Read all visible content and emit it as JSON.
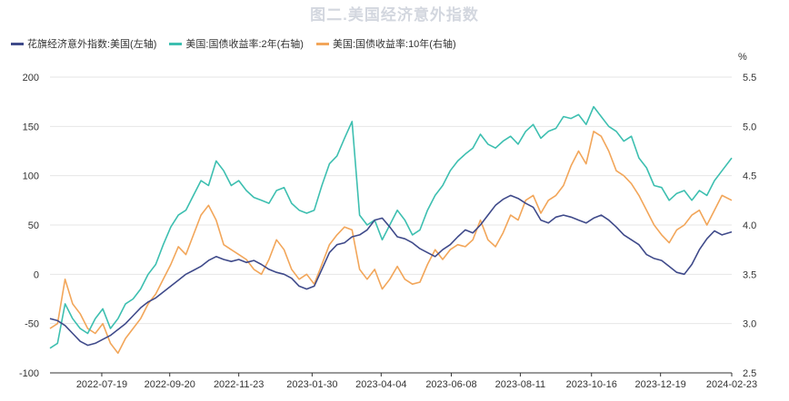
{
  "header": {
    "title": "图二.美国经济意外指数"
  },
  "chart_data": {
    "type": "line",
    "title": "图二.美国经济意外指数",
    "x_start": "2022-06-01",
    "x_end": "2024-02-23",
    "x_tick_labels": [
      "2022-07-19",
      "2022-09-20",
      "2022-11-23",
      "2023-01-30",
      "2023-04-04",
      "2023-06-08",
      "2023-08-11",
      "2023-10-16",
      "2023-12-19",
      "2024-02-23"
    ],
    "left_axis": {
      "ticks": [
        "200",
        "150",
        "100",
        "50",
        "0",
        "-50",
        "-100"
      ],
      "ylim": [
        -100,
        200
      ]
    },
    "right_axis": {
      "unit": "%",
      "ticks": [
        "5.5",
        "5.0",
        "4.5",
        "4.0",
        "3.5",
        "3.0",
        "2.5"
      ],
      "ylim": [
        2.5,
        5.5
      ]
    },
    "grid": "horizontal",
    "legend_position": "top-left",
    "series": [
      {
        "name": "花旗经济意外指数:美国(左轴)",
        "axis": "left",
        "color": "#3f4a8a",
        "points": [
          [
            "2022-06-01",
            -45
          ],
          [
            "2022-06-08",
            -47
          ],
          [
            "2022-06-15",
            -52
          ],
          [
            "2022-06-22",
            -60
          ],
          [
            "2022-06-29",
            -68
          ],
          [
            "2022-07-06",
            -72
          ],
          [
            "2022-07-13",
            -70
          ],
          [
            "2022-07-20",
            -66
          ],
          [
            "2022-07-27",
            -62
          ],
          [
            "2022-08-03",
            -56
          ],
          [
            "2022-08-10",
            -50
          ],
          [
            "2022-08-17",
            -42
          ],
          [
            "2022-08-24",
            -34
          ],
          [
            "2022-08-31",
            -28
          ],
          [
            "2022-09-07",
            -24
          ],
          [
            "2022-09-14",
            -18
          ],
          [
            "2022-09-21",
            -12
          ],
          [
            "2022-09-28",
            -6
          ],
          [
            "2022-10-05",
            0
          ],
          [
            "2022-10-12",
            4
          ],
          [
            "2022-10-19",
            8
          ],
          [
            "2022-10-26",
            14
          ],
          [
            "2022-11-02",
            18
          ],
          [
            "2022-11-09",
            15
          ],
          [
            "2022-11-16",
            13
          ],
          [
            "2022-11-23",
            15
          ],
          [
            "2022-11-30",
            12
          ],
          [
            "2022-12-07",
            14
          ],
          [
            "2022-12-14",
            10
          ],
          [
            "2022-12-21",
            5
          ],
          [
            "2022-12-28",
            2
          ],
          [
            "2023-01-04",
            0
          ],
          [
            "2023-01-11",
            -4
          ],
          [
            "2023-01-18",
            -12
          ],
          [
            "2023-01-25",
            -15
          ],
          [
            "2023-02-01",
            -12
          ],
          [
            "2023-02-08",
            5
          ],
          [
            "2023-02-15",
            22
          ],
          [
            "2023-02-22",
            30
          ],
          [
            "2023-03-01",
            32
          ],
          [
            "2023-03-08",
            38
          ],
          [
            "2023-03-15",
            40
          ],
          [
            "2023-03-22",
            45
          ],
          [
            "2023-03-29",
            55
          ],
          [
            "2023-04-05",
            57
          ],
          [
            "2023-04-12",
            48
          ],
          [
            "2023-04-19",
            38
          ],
          [
            "2023-04-26",
            36
          ],
          [
            "2023-05-03",
            32
          ],
          [
            "2023-05-10",
            26
          ],
          [
            "2023-05-17",
            22
          ],
          [
            "2023-05-24",
            18
          ],
          [
            "2023-05-31",
            25
          ],
          [
            "2023-06-07",
            30
          ],
          [
            "2023-06-14",
            38
          ],
          [
            "2023-06-21",
            45
          ],
          [
            "2023-06-28",
            42
          ],
          [
            "2023-07-05",
            50
          ],
          [
            "2023-07-12",
            60
          ],
          [
            "2023-07-19",
            70
          ],
          [
            "2023-07-26",
            76
          ],
          [
            "2023-08-02",
            80
          ],
          [
            "2023-08-09",
            77
          ],
          [
            "2023-08-16",
            72
          ],
          [
            "2023-08-23",
            68
          ],
          [
            "2023-08-30",
            55
          ],
          [
            "2023-09-06",
            52
          ],
          [
            "2023-09-13",
            58
          ],
          [
            "2023-09-20",
            60
          ],
          [
            "2023-09-27",
            58
          ],
          [
            "2023-10-04",
            55
          ],
          [
            "2023-10-11",
            52
          ],
          [
            "2023-10-18",
            57
          ],
          [
            "2023-10-25",
            60
          ],
          [
            "2023-11-01",
            55
          ],
          [
            "2023-11-08",
            48
          ],
          [
            "2023-11-15",
            40
          ],
          [
            "2023-11-22",
            35
          ],
          [
            "2023-11-29",
            30
          ],
          [
            "2023-12-06",
            20
          ],
          [
            "2023-12-13",
            16
          ],
          [
            "2023-12-20",
            14
          ],
          [
            "2023-12-27",
            8
          ],
          [
            "2024-01-03",
            2
          ],
          [
            "2024-01-10",
            0
          ],
          [
            "2024-01-17",
            10
          ],
          [
            "2024-01-24",
            25
          ],
          [
            "2024-01-31",
            36
          ],
          [
            "2024-02-07",
            44
          ],
          [
            "2024-02-14",
            40
          ],
          [
            "2024-02-23",
            43
          ]
        ]
      },
      {
        "name": "美国:国债收益率:2年(右轴)",
        "axis": "right",
        "color": "#3dbfb0",
        "points": [
          [
            "2022-06-01",
            2.75
          ],
          [
            "2022-06-08",
            2.8
          ],
          [
            "2022-06-15",
            3.2
          ],
          [
            "2022-06-22",
            3.05
          ],
          [
            "2022-06-29",
            2.95
          ],
          [
            "2022-07-06",
            2.9
          ],
          [
            "2022-07-13",
            3.05
          ],
          [
            "2022-07-20",
            3.15
          ],
          [
            "2022-07-27",
            2.95
          ],
          [
            "2022-08-03",
            3.05
          ],
          [
            "2022-08-10",
            3.2
          ],
          [
            "2022-08-17",
            3.25
          ],
          [
            "2022-08-24",
            3.35
          ],
          [
            "2022-08-31",
            3.5
          ],
          [
            "2022-09-07",
            3.6
          ],
          [
            "2022-09-14",
            3.8
          ],
          [
            "2022-09-21",
            3.98
          ],
          [
            "2022-09-28",
            4.1
          ],
          [
            "2022-10-05",
            4.15
          ],
          [
            "2022-10-12",
            4.3
          ],
          [
            "2022-10-19",
            4.45
          ],
          [
            "2022-10-26",
            4.4
          ],
          [
            "2022-11-02",
            4.65
          ],
          [
            "2022-11-09",
            4.55
          ],
          [
            "2022-11-16",
            4.4
          ],
          [
            "2022-11-23",
            4.45
          ],
          [
            "2022-11-30",
            4.35
          ],
          [
            "2022-12-07",
            4.28
          ],
          [
            "2022-12-14",
            4.25
          ],
          [
            "2022-12-21",
            4.22
          ],
          [
            "2022-12-28",
            4.35
          ],
          [
            "2023-01-04",
            4.38
          ],
          [
            "2023-01-11",
            4.22
          ],
          [
            "2023-01-18",
            4.15
          ],
          [
            "2023-01-25",
            4.12
          ],
          [
            "2023-02-01",
            4.15
          ],
          [
            "2023-02-08",
            4.4
          ],
          [
            "2023-02-15",
            4.62
          ],
          [
            "2023-02-22",
            4.7
          ],
          [
            "2023-03-01",
            4.88
          ],
          [
            "2023-03-08",
            5.05
          ],
          [
            "2023-03-15",
            4.1
          ],
          [
            "2023-03-22",
            4.0
          ],
          [
            "2023-03-29",
            4.05
          ],
          [
            "2023-04-05",
            3.85
          ],
          [
            "2023-04-12",
            4.0
          ],
          [
            "2023-04-19",
            4.15
          ],
          [
            "2023-04-26",
            4.05
          ],
          [
            "2023-05-03",
            3.9
          ],
          [
            "2023-05-10",
            3.95
          ],
          [
            "2023-05-17",
            4.15
          ],
          [
            "2023-05-24",
            4.3
          ],
          [
            "2023-05-31",
            4.4
          ],
          [
            "2023-06-07",
            4.55
          ],
          [
            "2023-06-14",
            4.65
          ],
          [
            "2023-06-21",
            4.72
          ],
          [
            "2023-06-28",
            4.78
          ],
          [
            "2023-07-05",
            4.92
          ],
          [
            "2023-07-12",
            4.82
          ],
          [
            "2023-07-19",
            4.78
          ],
          [
            "2023-07-26",
            4.85
          ],
          [
            "2023-08-02",
            4.9
          ],
          [
            "2023-08-09",
            4.82
          ],
          [
            "2023-08-16",
            4.95
          ],
          [
            "2023-08-23",
            5.02
          ],
          [
            "2023-08-30",
            4.88
          ],
          [
            "2023-09-06",
            4.95
          ],
          [
            "2023-09-13",
            4.98
          ],
          [
            "2023-09-20",
            5.1
          ],
          [
            "2023-09-27",
            5.08
          ],
          [
            "2023-10-04",
            5.12
          ],
          [
            "2023-10-11",
            5.02
          ],
          [
            "2023-10-18",
            5.2
          ],
          [
            "2023-10-25",
            5.1
          ],
          [
            "2023-11-01",
            5.0
          ],
          [
            "2023-11-08",
            4.95
          ],
          [
            "2023-11-15",
            4.85
          ],
          [
            "2023-11-22",
            4.9
          ],
          [
            "2023-11-29",
            4.68
          ],
          [
            "2023-12-06",
            4.58
          ],
          [
            "2023-12-13",
            4.4
          ],
          [
            "2023-12-20",
            4.38
          ],
          [
            "2023-12-27",
            4.25
          ],
          [
            "2024-01-03",
            4.32
          ],
          [
            "2024-01-10",
            4.35
          ],
          [
            "2024-01-17",
            4.25
          ],
          [
            "2024-01-24",
            4.35
          ],
          [
            "2024-01-31",
            4.3
          ],
          [
            "2024-02-07",
            4.45
          ],
          [
            "2024-02-14",
            4.55
          ],
          [
            "2024-02-23",
            4.68
          ]
        ]
      },
      {
        "name": "美国:国债收益率:10年(右轴)",
        "axis": "right",
        "color": "#f2a65a",
        "points": [
          [
            "2022-06-01",
            2.95
          ],
          [
            "2022-06-08",
            3.0
          ],
          [
            "2022-06-15",
            3.45
          ],
          [
            "2022-06-22",
            3.2
          ],
          [
            "2022-06-29",
            3.1
          ],
          [
            "2022-07-06",
            2.95
          ],
          [
            "2022-07-13",
            2.9
          ],
          [
            "2022-07-20",
            3.0
          ],
          [
            "2022-07-27",
            2.8
          ],
          [
            "2022-08-03",
            2.7
          ],
          [
            "2022-08-10",
            2.85
          ],
          [
            "2022-08-17",
            2.95
          ],
          [
            "2022-08-24",
            3.05
          ],
          [
            "2022-08-31",
            3.2
          ],
          [
            "2022-09-07",
            3.3
          ],
          [
            "2022-09-14",
            3.45
          ],
          [
            "2022-09-21",
            3.6
          ],
          [
            "2022-09-28",
            3.78
          ],
          [
            "2022-10-05",
            3.7
          ],
          [
            "2022-10-12",
            3.9
          ],
          [
            "2022-10-19",
            4.1
          ],
          [
            "2022-10-26",
            4.2
          ],
          [
            "2022-11-02",
            4.05
          ],
          [
            "2022-11-09",
            3.8
          ],
          [
            "2022-11-16",
            3.75
          ],
          [
            "2022-11-23",
            3.7
          ],
          [
            "2022-11-30",
            3.65
          ],
          [
            "2022-12-07",
            3.55
          ],
          [
            "2022-12-14",
            3.5
          ],
          [
            "2022-12-21",
            3.65
          ],
          [
            "2022-12-28",
            3.85
          ],
          [
            "2023-01-04",
            3.75
          ],
          [
            "2023-01-11",
            3.55
          ],
          [
            "2023-01-18",
            3.45
          ],
          [
            "2023-01-25",
            3.5
          ],
          [
            "2023-02-01",
            3.4
          ],
          [
            "2023-02-08",
            3.6
          ],
          [
            "2023-02-15",
            3.8
          ],
          [
            "2023-02-22",
            3.9
          ],
          [
            "2023-03-01",
            3.98
          ],
          [
            "2023-03-08",
            3.95
          ],
          [
            "2023-03-15",
            3.55
          ],
          [
            "2023-03-22",
            3.45
          ],
          [
            "2023-03-29",
            3.55
          ],
          [
            "2023-04-05",
            3.35
          ],
          [
            "2023-04-12",
            3.45
          ],
          [
            "2023-04-19",
            3.58
          ],
          [
            "2023-04-26",
            3.45
          ],
          [
            "2023-05-03",
            3.4
          ],
          [
            "2023-05-10",
            3.42
          ],
          [
            "2023-05-17",
            3.6
          ],
          [
            "2023-05-24",
            3.75
          ],
          [
            "2023-05-31",
            3.65
          ],
          [
            "2023-06-07",
            3.75
          ],
          [
            "2023-06-14",
            3.8
          ],
          [
            "2023-06-21",
            3.78
          ],
          [
            "2023-06-28",
            3.85
          ],
          [
            "2023-07-05",
            4.05
          ],
          [
            "2023-07-12",
            3.85
          ],
          [
            "2023-07-19",
            3.78
          ],
          [
            "2023-07-26",
            3.92
          ],
          [
            "2023-08-02",
            4.1
          ],
          [
            "2023-08-09",
            4.05
          ],
          [
            "2023-08-16",
            4.25
          ],
          [
            "2023-08-23",
            4.3
          ],
          [
            "2023-08-30",
            4.12
          ],
          [
            "2023-09-06",
            4.25
          ],
          [
            "2023-09-13",
            4.3
          ],
          [
            "2023-09-20",
            4.4
          ],
          [
            "2023-09-27",
            4.6
          ],
          [
            "2023-10-04",
            4.75
          ],
          [
            "2023-10-11",
            4.62
          ],
          [
            "2023-10-18",
            4.95
          ],
          [
            "2023-10-25",
            4.9
          ],
          [
            "2023-11-01",
            4.75
          ],
          [
            "2023-11-08",
            4.55
          ],
          [
            "2023-11-15",
            4.5
          ],
          [
            "2023-11-22",
            4.42
          ],
          [
            "2023-11-29",
            4.3
          ],
          [
            "2023-12-06",
            4.15
          ],
          [
            "2023-12-13",
            4.0
          ],
          [
            "2023-12-20",
            3.9
          ],
          [
            "2023-12-27",
            3.82
          ],
          [
            "2024-01-03",
            3.95
          ],
          [
            "2024-01-10",
            4.0
          ],
          [
            "2024-01-17",
            4.1
          ],
          [
            "2024-01-24",
            4.15
          ],
          [
            "2024-01-31",
            4.0
          ],
          [
            "2024-02-07",
            4.15
          ],
          [
            "2024-02-14",
            4.3
          ],
          [
            "2024-02-23",
            4.25
          ]
        ]
      }
    ]
  }
}
